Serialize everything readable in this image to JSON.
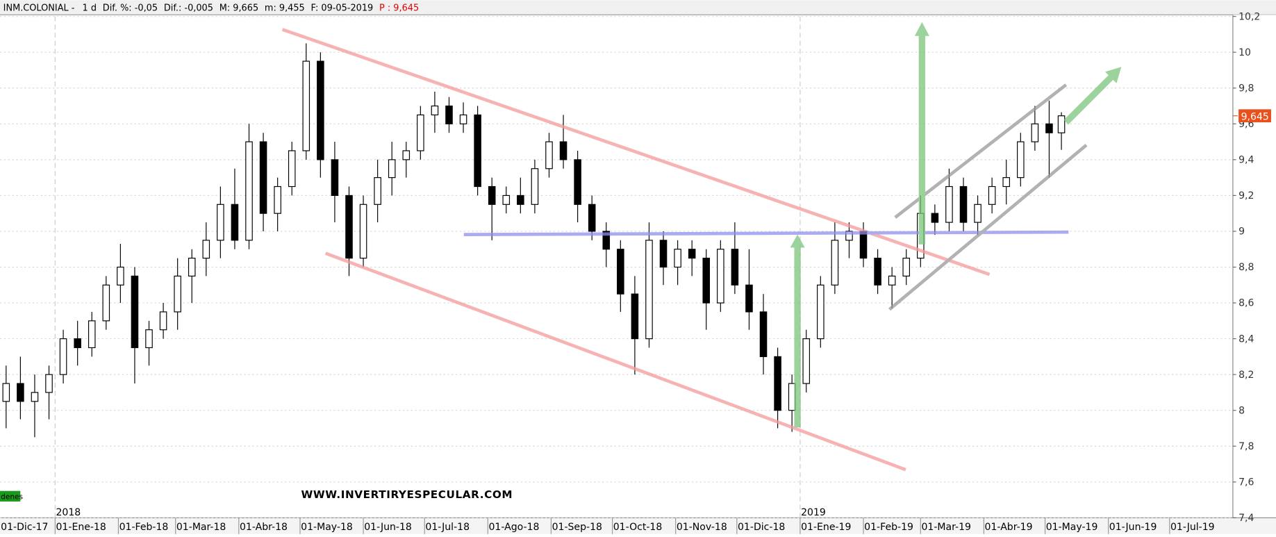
{
  "chart_data": {
    "type": "candlestick",
    "header": [
      "INM.COLONIAL -",
      "1 d",
      "Dif. %: -0,05",
      "Dif.: -0,005",
      "M: 9,665",
      "m: 9,455",
      "F: 09-05-2019",
      "P : 9,645"
    ],
    "watermark": "WWW.INVERTIRYESPECULAR.COM",
    "badge": "denes",
    "last_price": {
      "value": 9.645,
      "label": "9,645"
    },
    "year_markers": [
      {
        "value": 31,
        "label": "2018"
      },
      {
        "value": 396,
        "label": "2019"
      }
    ],
    "xlim": [
      4,
      608
    ],
    "xticks": [
      {
        "value": 0,
        "label": "01-Dic-17"
      },
      {
        "value": 31,
        "label": "01-Ene-18"
      },
      {
        "value": 62,
        "label": "01-Feb-18"
      },
      {
        "value": 90,
        "label": "01-Mar-18"
      },
      {
        "value": 121,
        "label": "01-Abr-18"
      },
      {
        "value": 151,
        "label": "01-May-18"
      },
      {
        "value": 182,
        "label": "01-Jun-18"
      },
      {
        "value": 212,
        "label": "01-Jul-18"
      },
      {
        "value": 243,
        "label": "01-Ago-18"
      },
      {
        "value": 274,
        "label": "01-Sep-18"
      },
      {
        "value": 304,
        "label": "01-Oct-18"
      },
      {
        "value": 335,
        "label": "01-Nov-18"
      },
      {
        "value": 365,
        "label": "01-Dic-18"
      },
      {
        "value": 396,
        "label": "01-Ene-19"
      },
      {
        "value": 427,
        "label": "01-Feb-19"
      },
      {
        "value": 455,
        "label": "01-Mar-19"
      },
      {
        "value": 486,
        "label": "01-Abr-19"
      },
      {
        "value": 516,
        "label": "01-May-19"
      },
      {
        "value": 547,
        "label": "01-Jun-19"
      },
      {
        "value": 577,
        "label": "01-Jul-19"
      }
    ],
    "ylim": [
      7.4,
      10.2
    ],
    "yticks": [
      {
        "value": 7.4,
        "label": "7,4"
      },
      {
        "value": 7.6,
        "label": "7,6"
      },
      {
        "value": 7.8,
        "label": "7,8"
      },
      8,
      {
        "value": 8.2,
        "label": "8,2"
      },
      {
        "value": 8.4,
        "label": "8,4"
      },
      {
        "value": 8.6,
        "label": "8,6"
      },
      {
        "value": 8.8,
        "label": "8,8"
      },
      9,
      {
        "value": 9.2,
        "label": "9,2"
      },
      {
        "value": 9.4,
        "label": "9,4"
      },
      {
        "value": 9.6,
        "label": "9,6"
      },
      {
        "value": 9.8,
        "label": "9,8"
      },
      10,
      {
        "value": 10.2,
        "label": "10,2"
      }
    ],
    "grid": true,
    "up_color": "#ffffff",
    "down_color": "#000000",
    "x": [
      7,
      14,
      21,
      28,
      35,
      42,
      49,
      56,
      63,
      70,
      77,
      84,
      91,
      98,
      105,
      112,
      119,
      126,
      133,
      140,
      147,
      154,
      161,
      168,
      175,
      182,
      189,
      196,
      203,
      210,
      217,
      224,
      231,
      238,
      245,
      252,
      259,
      266,
      273,
      280,
      287,
      294,
      301,
      308,
      315,
      322,
      329,
      336,
      343,
      350,
      357,
      364,
      371,
      378,
      385,
      392,
      399,
      406,
      413,
      420,
      427,
      434,
      441,
      448,
      455,
      462,
      469,
      476,
      483,
      490,
      497,
      504,
      511,
      518,
      524
    ],
    "open": [
      8.05,
      8.15,
      8.05,
      8.1,
      8.2,
      8.4,
      8.35,
      8.5,
      8.7,
      8.75,
      8.35,
      8.45,
      8.55,
      8.75,
      8.85,
      8.95,
      9.15,
      8.95,
      9.5,
      9.1,
      9.25,
      9.45,
      9.95,
      9.4,
      9.2,
      8.85,
      9.15,
      9.3,
      9.4,
      9.45,
      9.65,
      9.7,
      9.6,
      9.65,
      9.25,
      9.15,
      9.2,
      9.15,
      9.35,
      9.5,
      9.4,
      9.15,
      9.0,
      8.9,
      8.65,
      8.4,
      8.95,
      8.8,
      8.9,
      8.85,
      8.6,
      8.9,
      8.7,
      8.55,
      8.3,
      8.0,
      8.15,
      8.4,
      8.7,
      8.95,
      9.0,
      8.85,
      8.7,
      8.75,
      8.85,
      9.1,
      9.05,
      9.25,
      9.05,
      9.15,
      9.25,
      9.3,
      9.5,
      9.6,
      9.55
    ],
    "high": [
      8.25,
      8.3,
      8.2,
      8.25,
      8.45,
      8.5,
      8.55,
      8.75,
      8.93,
      8.8,
      8.5,
      8.6,
      8.85,
      8.9,
      9.05,
      9.25,
      9.35,
      9.6,
      9.55,
      9.3,
      9.5,
      10.05,
      10.0,
      9.5,
      9.25,
      9.2,
      9.4,
      9.5,
      9.5,
      9.7,
      9.78,
      9.75,
      9.72,
      9.7,
      9.3,
      9.25,
      9.3,
      9.4,
      9.55,
      9.65,
      9.45,
      9.2,
      9.05,
      8.95,
      8.75,
      9.05,
      9.0,
      8.95,
      8.95,
      8.9,
      8.95,
      9.05,
      8.9,
      8.65,
      8.35,
      8.2,
      8.45,
      8.75,
      9.05,
      9.05,
      9.05,
      8.9,
      8.8,
      8.9,
      9.2,
      9.15,
      9.35,
      9.3,
      9.2,
      9.3,
      9.4,
      9.55,
      9.7,
      9.73,
      9.665
    ],
    "low": [
      7.9,
      7.95,
      7.85,
      7.95,
      8.15,
      8.25,
      8.3,
      8.45,
      8.6,
      8.15,
      8.25,
      8.4,
      8.45,
      8.6,
      8.75,
      8.85,
      8.9,
      8.9,
      9.0,
      9.0,
      9.2,
      9.4,
      9.3,
      9.05,
      8.75,
      8.8,
      9.05,
      9.2,
      9.3,
      9.4,
      9.55,
      9.55,
      9.55,
      9.2,
      8.95,
      9.1,
      9.1,
      9.1,
      9.3,
      9.35,
      9.05,
      8.95,
      8.8,
      8.55,
      8.2,
      8.35,
      8.7,
      8.7,
      8.75,
      8.45,
      8.55,
      8.65,
      8.45,
      8.2,
      7.9,
      7.88,
      8.1,
      8.35,
      8.65,
      8.85,
      8.8,
      8.65,
      8.57,
      8.7,
      8.8,
      8.98,
      9.0,
      9.0,
      8.98,
      9.1,
      9.15,
      9.25,
      9.45,
      9.3,
      9.455
    ],
    "close": [
      8.15,
      8.05,
      8.1,
      8.2,
      8.4,
      8.35,
      8.5,
      8.7,
      8.8,
      8.35,
      8.45,
      8.55,
      8.75,
      8.85,
      8.95,
      9.15,
      8.95,
      9.5,
      9.1,
      9.25,
      9.45,
      9.95,
      9.4,
      9.2,
      8.85,
      9.15,
      9.3,
      9.4,
      9.45,
      9.65,
      9.7,
      9.6,
      9.65,
      9.25,
      9.15,
      9.2,
      9.15,
      9.35,
      9.5,
      9.4,
      9.15,
      9.0,
      8.9,
      8.65,
      8.4,
      8.95,
      8.8,
      8.9,
      8.85,
      8.6,
      8.9,
      8.7,
      8.55,
      8.3,
      8.0,
      8.15,
      8.4,
      8.7,
      8.95,
      9.0,
      8.85,
      8.7,
      8.75,
      8.85,
      9.1,
      9.05,
      9.25,
      9.05,
      9.15,
      9.25,
      9.3,
      9.5,
      9.6,
      9.55,
      9.645
    ]
  }
}
